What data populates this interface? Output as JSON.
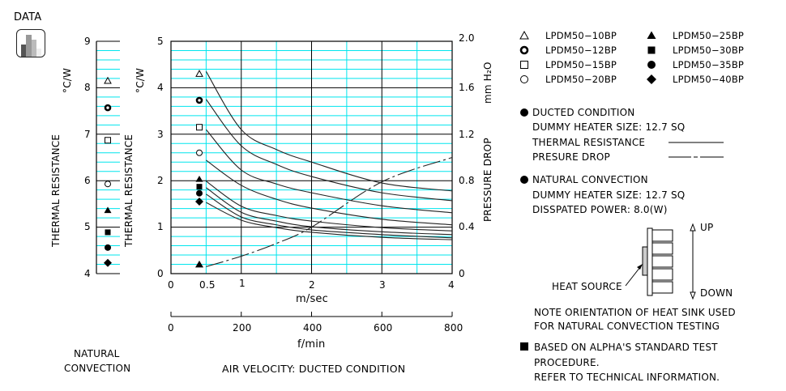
{
  "header": {
    "data_label": "DATA",
    "icon": "bar-chart-icon"
  },
  "natural_panel": {
    "y_unit": "°C/W",
    "y_label": "THERMAL   RESISTANCE",
    "y_ticks": [
      "9",
      "8",
      "7",
      "6",
      "5",
      "4"
    ],
    "footer_line1": "NATURAL",
    "footer_line2": "CONVECTION"
  },
  "ducted_panel": {
    "y_unit": "°C/W",
    "y_label": "THERMAL   RESISTANCE",
    "y_ticks": [
      "5",
      "4",
      "3",
      "2",
      "1",
      "0"
    ],
    "y2_ticks": [
      "2.0",
      "1.6",
      "1.2",
      "0.8",
      "0.4",
      "0"
    ],
    "y2_label": "PRESSURE   DROP",
    "y2_unit": "mm H₂O",
    "x_ticks": [
      "0",
      "0.5",
      "1",
      "2",
      "3",
      "4"
    ],
    "x_unit": "m/sec",
    "x2_ticks": [
      "0",
      "200",
      "400",
      "600",
      "800"
    ],
    "x2_unit": "f/min",
    "caption": "AIR VELOCITY:  DUCTED CONDITION"
  },
  "legend": {
    "items": [
      {
        "symbol": "triangle-open",
        "label": "LPDM50−10BP"
      },
      {
        "symbol": "ring-bold",
        "label": "LPDM50−12BP"
      },
      {
        "symbol": "square-open",
        "label": "LPDM50−15BP"
      },
      {
        "symbol": "circle-open",
        "label": "LPDM50−20BP"
      },
      {
        "symbol": "triangle-filled",
        "label": "LPDM50−25BP"
      },
      {
        "symbol": "square-filled",
        "label": "LPDM50−30BP"
      },
      {
        "symbol": "circle-filled",
        "label": "LPDM50−35BP"
      },
      {
        "symbol": "diamond-filled",
        "label": "LPDM50−40BP"
      }
    ]
  },
  "notes": {
    "ducted_title": "DUCTED CONDITION",
    "ducted_heater": "DUMMY HEATER SIZE:  12.7 SQ",
    "thermal_resistance": "THERMAL RESISTANCE",
    "pressure_drop": "PRESURE DROP",
    "natural_title": "NATURAL CONVECTION",
    "natural_heater": "DUMMY HEATER SIZE:  12.7 SQ",
    "dissipated_power": "DISSPATED POWER:  8.0(W)",
    "up": "UP",
    "down": "DOWN",
    "heat_source": "HEAT SOURCE",
    "orientation_1": "NOTE ORIENTATION OF HEAT SINK USED",
    "orientation_2": "FOR NATURAL CONVECTION TESTING",
    "based_1": "BASED ON ALPHA'S STANDARD TEST",
    "based_2": "PROCEDURE.",
    "based_3": "REFER TO TECHNICAL INFORMATION."
  },
  "colors": {
    "grid_minor": "#00e5ee",
    "grid_major": "#000000",
    "curve": "#222222"
  },
  "chart_data": [
    {
      "type": "scatter",
      "title": "NATURAL CONVECTION",
      "ylabel": "THERMAL RESISTANCE (°C/W)",
      "ylim": [
        4,
        9
      ],
      "grid": true,
      "series": [
        {
          "name": "LPDM50-10BP",
          "values": [
            8.15
          ]
        },
        {
          "name": "LPDM50-12BP",
          "values": [
            7.57
          ]
        },
        {
          "name": "LPDM50-15BP",
          "values": [
            6.87
          ]
        },
        {
          "name": "LPDM50-20BP",
          "values": [
            5.93
          ]
        },
        {
          "name": "LPDM50-25BP",
          "values": [
            5.36
          ]
        },
        {
          "name": "LPDM50-30BP",
          "values": [
            4.89
          ]
        },
        {
          "name": "LPDM50-35BP",
          "values": [
            4.56
          ]
        },
        {
          "name": "LPDM50-40BP",
          "values": [
            4.23
          ]
        }
      ]
    },
    {
      "type": "line",
      "title": "AIR VELOCITY: DUCTED CONDITION",
      "xlabel": "m/sec",
      "x2label": "f/min",
      "ylabel": "THERMAL RESISTANCE (°C/W)",
      "y2label": "PRESSURE DROP (mm H2O)",
      "xlim": [
        0,
        4
      ],
      "ylim": [
        0,
        5
      ],
      "y2lim": [
        0,
        2.0
      ],
      "grid": true,
      "x": [
        0.5,
        1,
        1.5,
        2,
        3,
        4
      ],
      "series": [
        {
          "name": "LPDM50-10BP",
          "values": [
            4.35,
            3.1,
            2.67,
            2.4,
            1.95,
            1.78
          ]
        },
        {
          "name": "LPDM50-12BP",
          "values": [
            3.75,
            2.75,
            2.35,
            2.09,
            1.74,
            1.57
          ]
        },
        {
          "name": "LPDM50-15BP",
          "values": [
            3.1,
            2.23,
            1.93,
            1.74,
            1.46,
            1.31
          ]
        },
        {
          "name": "LPDM50-20BP",
          "values": [
            2.44,
            1.9,
            1.6,
            1.41,
            1.17,
            1.05
          ]
        },
        {
          "name": "LPDM50-25BP",
          "values": [
            1.99,
            1.45,
            1.25,
            1.13,
            0.99,
            0.92
          ]
        },
        {
          "name": "LPDM50-30BP",
          "values": [
            1.85,
            1.32,
            1.13,
            1.01,
            0.9,
            0.84
          ]
        },
        {
          "name": "LPDM50-35BP",
          "values": [
            1.71,
            1.22,
            1.05,
            0.94,
            0.84,
            0.77
          ]
        },
        {
          "name": "LPDM50-40BP",
          "values": [
            1.53,
            1.15,
            0.99,
            0.89,
            0.78,
            0.73
          ]
        },
        {
          "name": "Pressure Drop",
          "axis": "y2",
          "style": "dash-dot",
          "values": [
            0.06,
            0.15,
            0.26,
            0.4,
            0.79,
            1.0
          ]
        }
      ],
      "markers_at_0.4": {
        "LPDM50-10BP": 4.3,
        "LPDM50-12BP": 3.73,
        "LPDM50-15BP": 3.15,
        "LPDM50-20BP": 2.6,
        "LPDM50-25BP": 2.03,
        "LPDM50-30BP": 1.87,
        "LPDM50-35BP": 1.73,
        "LPDM50-40BP": 1.55,
        "PressureDrop_triangle": 0.05
      }
    }
  ]
}
